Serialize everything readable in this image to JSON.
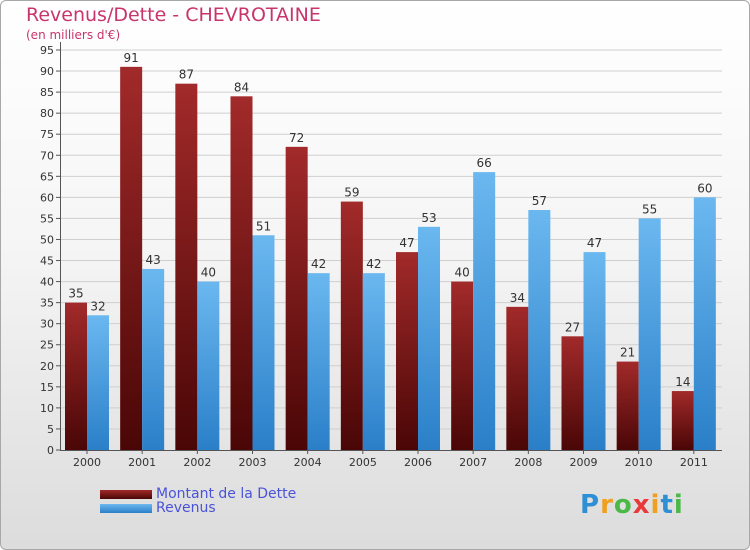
{
  "chart_data": {
    "type": "bar",
    "title": "Revenus/Dette - CHEVROTAINE",
    "subtitle": "(en milliers d'€)",
    "categories": [
      "2000",
      "2001",
      "2002",
      "2003",
      "2004",
      "2005",
      "2006",
      "2007",
      "2008",
      "2009",
      "2010",
      "2011"
    ],
    "series": [
      {
        "name": "Montant de la Dette",
        "color": "#7a1a1a",
        "values": [
          35,
          91,
          87,
          84,
          72,
          59,
          47,
          40,
          34,
          27,
          21,
          14
        ]
      },
      {
        "name": "Revenus",
        "color": "#4aa3e6",
        "values": [
          32,
          43,
          40,
          51,
          42,
          42,
          53,
          66,
          57,
          47,
          55,
          60
        ]
      }
    ],
    "ylim": [
      0,
      95
    ],
    "yticks": [
      0,
      5,
      10,
      15,
      20,
      25,
      30,
      35,
      40,
      45,
      50,
      55,
      60,
      65,
      70,
      75,
      80,
      85,
      90,
      95
    ],
    "grid": true,
    "legend_position": "bottom-left"
  },
  "brand": {
    "letters": [
      "P",
      "r",
      "o",
      "x",
      "i",
      "t",
      "i"
    ],
    "colors": [
      "#2e8fd4",
      "#f0a020",
      "#4cb848",
      "#e83a3a",
      "#f0a020",
      "#2e8fd4",
      "#4cb848"
    ]
  }
}
